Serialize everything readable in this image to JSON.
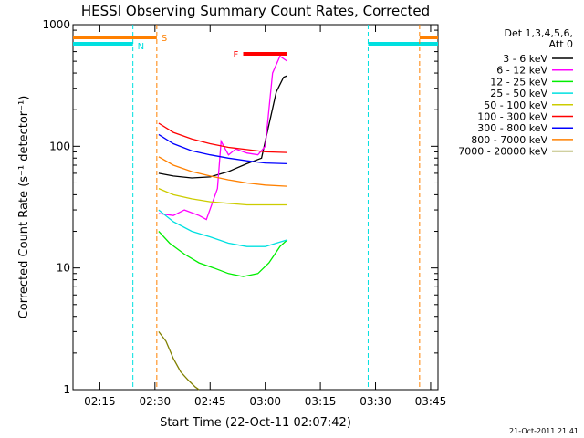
{
  "chart_data": {
    "type": "line",
    "title": "HESSI Observing Summary Count Rates, Corrected",
    "xlabel": "Start Time (22-Oct-11 02:07:42)",
    "ylabel": "Corrected Count Rate (s⁻¹ detector⁻¹)",
    "ylog": true,
    "ylim": [
      1,
      1000
    ],
    "xlim": [
      "02:07:42",
      "03:47:00"
    ],
    "xticks": [
      "02:15",
      "02:30",
      "02:45",
      "03:00",
      "03:15",
      "03:30",
      "03:45"
    ],
    "yticks": [
      "1",
      "10",
      "100",
      "1000"
    ],
    "legend_header": [
      "Det 1,3,4,5,6,",
      "Att 0"
    ],
    "footer_date": "21-Oct-2011 21:41",
    "flags": [
      {
        "label": "N",
        "color": "#00e0e0",
        "time_ranges": [
          [
            "02:07:42",
            "02:24:00"
          ],
          [
            "03:28:00",
            "03:47:00"
          ]
        ],
        "boundaries": [
          "02:24:00",
          "03:28:00"
        ]
      },
      {
        "label": "S",
        "color": "#ff8000",
        "time_ranges": [
          [
            "02:07:42",
            "02:30:30"
          ],
          [
            "03:42:00",
            "03:47:00"
          ]
        ],
        "boundaries": [
          "02:30:30",
          "03:42:00"
        ]
      },
      {
        "label": "F",
        "color": "#ff0000",
        "time_ranges": [
          [
            "02:54:00",
            "03:06:00"
          ]
        ],
        "boundaries": []
      }
    ],
    "series": [
      {
        "name": "3 - 6 keV",
        "color": "#000000",
        "points": [
          [
            "02:31:00",
            60
          ],
          [
            "02:35:00",
            57
          ],
          [
            "02:40:00",
            55
          ],
          [
            "02:45:00",
            56
          ],
          [
            "02:50:00",
            62
          ],
          [
            "02:55:00",
            72
          ],
          [
            "02:59:00",
            80
          ],
          [
            "03:01:00",
            150
          ],
          [
            "03:03:00",
            280
          ],
          [
            "03:05:00",
            370
          ],
          [
            "03:06:00",
            380
          ]
        ]
      },
      {
        "name": "6 - 12 keV",
        "color": "#ff00ff",
        "points": [
          [
            "02:31:00",
            28
          ],
          [
            "02:35:00",
            27
          ],
          [
            "02:38:00",
            30
          ],
          [
            "02:42:00",
            27
          ],
          [
            "02:44:00",
            25
          ],
          [
            "02:47:00",
            45
          ],
          [
            "02:48:00",
            110
          ],
          [
            "02:50:00",
            85
          ],
          [
            "02:52:00",
            95
          ],
          [
            "02:55:00",
            88
          ],
          [
            "02:58:00",
            85
          ],
          [
            "03:00:00",
            100
          ],
          [
            "03:02:00",
            400
          ],
          [
            "03:04:00",
            550
          ],
          [
            "03:06:00",
            500
          ]
        ]
      },
      {
        "name": "12 - 25 keV",
        "color": "#00ee00",
        "points": [
          [
            "02:31:00",
            20
          ],
          [
            "02:34:00",
            16
          ],
          [
            "02:38:00",
            13
          ],
          [
            "02:42:00",
            11
          ],
          [
            "02:46:00",
            10
          ],
          [
            "02:50:00",
            9
          ],
          [
            "02:54:00",
            8.5
          ],
          [
            "02:58:00",
            9
          ],
          [
            "03:01:00",
            11
          ],
          [
            "03:04:00",
            15
          ],
          [
            "03:06:00",
            17
          ]
        ]
      },
      {
        "name": "25 - 50 keV",
        "color": "#00e0e0",
        "points": [
          [
            "02:31:00",
            30
          ],
          [
            "02:35:00",
            24
          ],
          [
            "02:40:00",
            20
          ],
          [
            "02:45:00",
            18
          ],
          [
            "02:50:00",
            16
          ],
          [
            "02:55:00",
            15
          ],
          [
            "03:00:00",
            15
          ],
          [
            "03:03:00",
            16
          ],
          [
            "03:06:00",
            17
          ]
        ]
      },
      {
        "name": "50 - 100 keV",
        "color": "#cccc00",
        "points": [
          [
            "02:31:00",
            45
          ],
          [
            "02:35:00",
            40
          ],
          [
            "02:40:00",
            37
          ],
          [
            "02:45:00",
            35
          ],
          [
            "02:50:00",
            34
          ],
          [
            "02:55:00",
            33
          ],
          [
            "03:00:00",
            33
          ],
          [
            "03:06:00",
            33
          ]
        ]
      },
      {
        "name": "100 - 300 keV",
        "color": "#ff0000",
        "points": [
          [
            "02:31:00",
            155
          ],
          [
            "02:35:00",
            130
          ],
          [
            "02:40:00",
            115
          ],
          [
            "02:45:00",
            105
          ],
          [
            "02:50:00",
            98
          ],
          [
            "02:55:00",
            94
          ],
          [
            "03:00:00",
            90
          ],
          [
            "03:06:00",
            89
          ]
        ]
      },
      {
        "name": "300 - 800 keV",
        "color": "#0000ff",
        "points": [
          [
            "02:31:00",
            125
          ],
          [
            "02:35:00",
            105
          ],
          [
            "02:40:00",
            92
          ],
          [
            "02:45:00",
            85
          ],
          [
            "02:50:00",
            80
          ],
          [
            "02:55:00",
            76
          ],
          [
            "03:00:00",
            73
          ],
          [
            "03:06:00",
            72
          ]
        ]
      },
      {
        "name": "800 - 7000 keV",
        "color": "#ff8000",
        "points": [
          [
            "02:31:00",
            82
          ],
          [
            "02:35:00",
            70
          ],
          [
            "02:40:00",
            62
          ],
          [
            "02:45:00",
            57
          ],
          [
            "02:50:00",
            53
          ],
          [
            "02:55:00",
            50
          ],
          [
            "03:00:00",
            48
          ],
          [
            "03:06:00",
            47
          ]
        ]
      },
      {
        "name": "7000 - 20000 keV",
        "color": "#808000",
        "points": [
          [
            "02:31:00",
            3
          ],
          [
            "02:33:00",
            2.5
          ],
          [
            "02:35:00",
            1.8
          ],
          [
            "02:37:00",
            1.4
          ],
          [
            "02:39:00",
            1.2
          ],
          [
            "02:41:00",
            1.05
          ],
          [
            "02:42:00",
            1.0
          ]
        ]
      }
    ]
  }
}
